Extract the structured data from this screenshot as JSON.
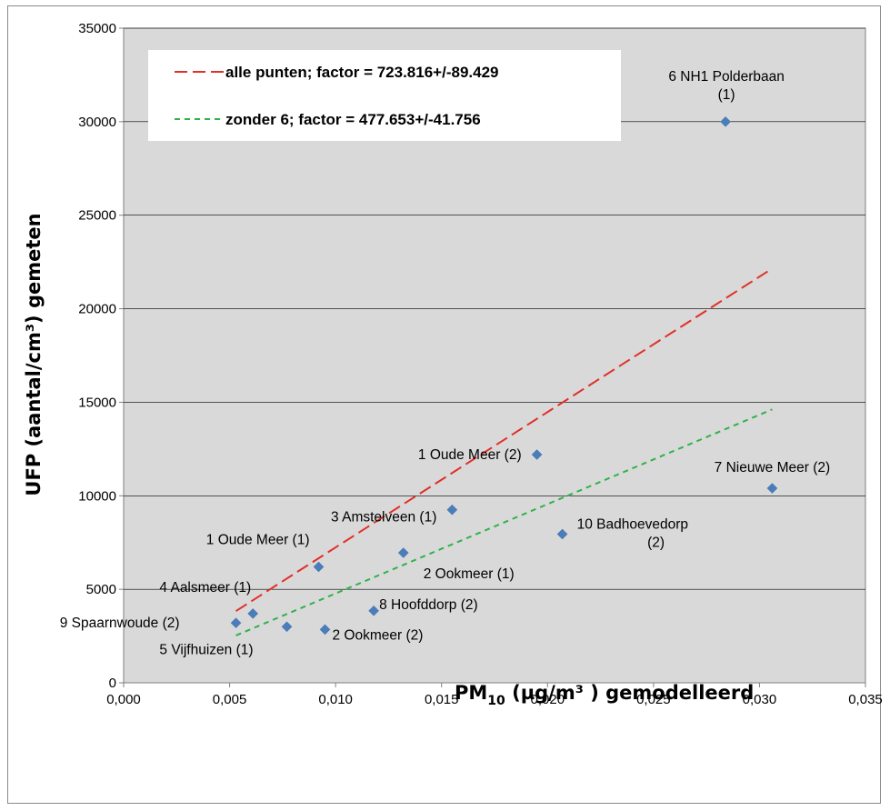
{
  "chart_data": {
    "type": "scatter",
    "title": "",
    "ylabel": "UFP (aantal/cm³)  gemeten",
    "xlabel": "PM",
    "xlabel_sub": "10",
    "xlabel_rest": " (µg/m³ ) gemodelleerd",
    "xlim": [
      0,
      0.035
    ],
    "ylim": [
      0,
      35000
    ],
    "grid": "horizontal",
    "x_ticks": [
      {
        "value": 0.0,
        "label": "0,000"
      },
      {
        "value": 0.005,
        "label": "0,005"
      },
      {
        "value": 0.01,
        "label": "0,010"
      },
      {
        "value": 0.015,
        "label": "0,015"
      },
      {
        "value": 0.02,
        "label": "0,020"
      },
      {
        "value": 0.025,
        "label": "0,025"
      },
      {
        "value": 0.03,
        "label": "0,030"
      },
      {
        "value": 0.035,
        "label": "0,035"
      }
    ],
    "y_ticks": [
      {
        "value": 0,
        "label": "0"
      },
      {
        "value": 5000,
        "label": "5000"
      },
      {
        "value": 10000,
        "label": "10000"
      },
      {
        "value": 15000,
        "label": "15000"
      },
      {
        "value": 20000,
        "label": "20000"
      },
      {
        "value": 25000,
        "label": "25000"
      },
      {
        "value": 30000,
        "label": "30000"
      },
      {
        "value": 35000,
        "label": "35000"
      }
    ],
    "points": [
      {
        "x": 0.0053,
        "y": 3200,
        "label": "9 Spaarnwoude (2)"
      },
      {
        "x": 0.0061,
        "y": 3700,
        "label": "4 Aalsmeer (1)"
      },
      {
        "x": 0.0077,
        "y": 3000,
        "label": "5 Vijfhuizen (1)"
      },
      {
        "x": 0.0092,
        "y": 6200,
        "label": "1 Oude Meer (1)"
      },
      {
        "x": 0.0095,
        "y": 2850,
        "label": "2 Ookmeer (2)"
      },
      {
        "x": 0.0118,
        "y": 3850,
        "label": "8 Hoofddorp (2)"
      },
      {
        "x": 0.0132,
        "y": 6950,
        "label": "2 Ookmeer (1)"
      },
      {
        "x": 0.0155,
        "y": 9250,
        "label": "3 Amstelveen (1)"
      },
      {
        "x": 0.0195,
        "y": 12200,
        "label": "1 Oude Meer (2)"
      },
      {
        "x": 0.0207,
        "y": 7950,
        "label": "10 Badhoevedorp (2)"
      },
      {
        "x": 0.0284,
        "y": 30000,
        "label": "6 NH1 Polderbaan (1)"
      },
      {
        "x": 0.0306,
        "y": 10400,
        "label": "7 Nieuwe Meer (2)"
      }
    ],
    "fits": [
      {
        "name": "alle punten; factor = 723.816+/-89.429",
        "color": "#e03028",
        "slope": 723.816,
        "x_from": 0.0053,
        "x_to": 0.0306
      },
      {
        "name": "zonder 6; factor = 477.653+/-41.756",
        "color": "#2fb24a",
        "slope": 477.653,
        "x_from": 0.0053,
        "x_to": 0.0306
      }
    ],
    "colors": {
      "plot_bg": "#d9d9d9",
      "marker": "#4a7ebb"
    }
  }
}
